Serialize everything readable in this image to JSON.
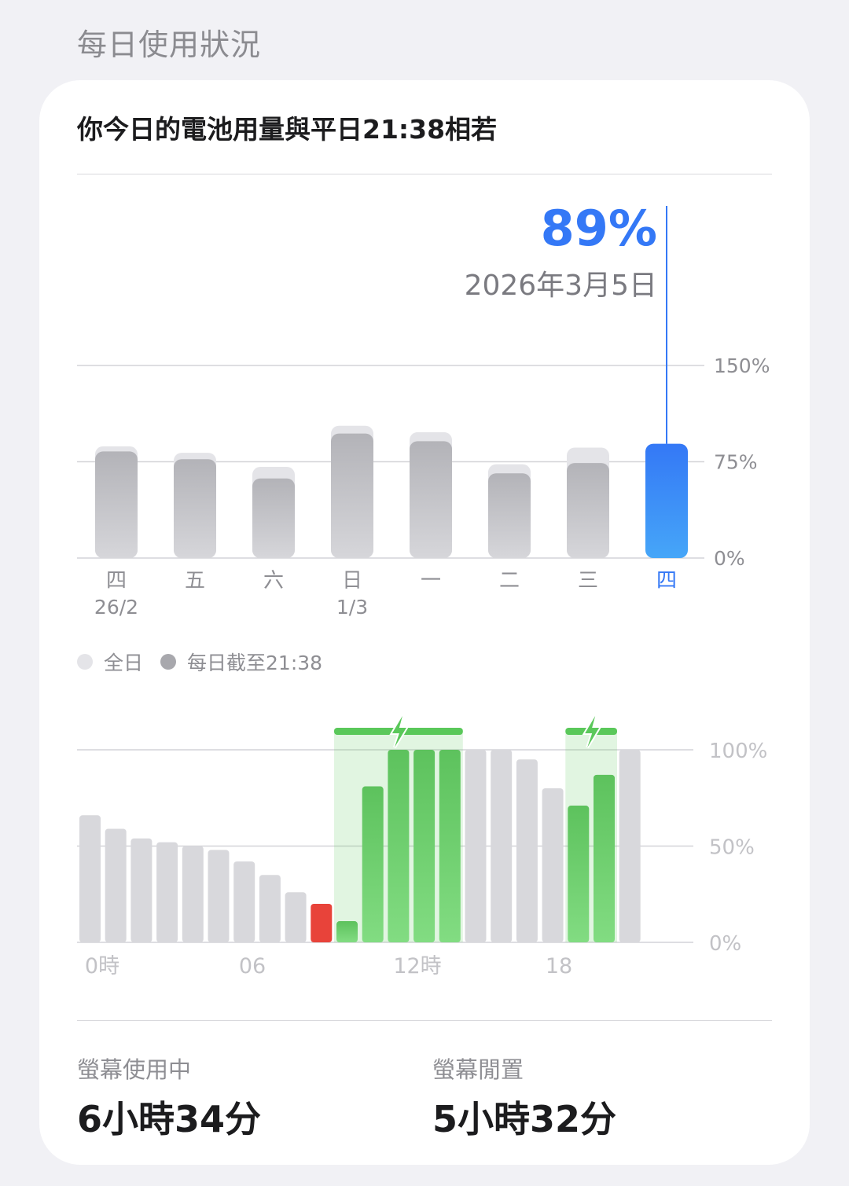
{
  "section_title": "每日使用狀況",
  "headline": "你今日的電池用量與平日21:38相若",
  "callout": {
    "percent": "89%",
    "date": "2026年3月5日"
  },
  "colors": {
    "accent_blue": "#3478f6",
    "bar_gray": "#b5b5ba",
    "bar_light": "#e4e4e8",
    "charging_green": "#5ac85a",
    "low_red": "#e8433a"
  },
  "daily_chart_data": {
    "type": "bar",
    "y_ticks": [
      "150%",
      "75%",
      "0%"
    ],
    "ylim": [
      0,
      150
    ],
    "categories": [
      "四",
      "五",
      "六",
      "日",
      "一",
      "二",
      "三",
      "四"
    ],
    "date_labels": [
      "26/2",
      "",
      "",
      "1/3",
      "",
      "",
      "",
      ""
    ],
    "series": [
      {
        "name": "全日",
        "values": [
          87,
          82,
          71,
          103,
          98,
          73,
          86,
          null
        ]
      },
      {
        "name": "每日截至21:38",
        "values": [
          83,
          77,
          62,
          97,
          91,
          66,
          74,
          89
        ]
      }
    ],
    "highlight_index": 7
  },
  "legend": [
    {
      "label": "全日",
      "icon": "light-gray-dot"
    },
    {
      "label": "每日截至21:38",
      "icon": "gray-dot"
    }
  ],
  "hourly_chart_data": {
    "type": "bar",
    "y_ticks": [
      "100%",
      "50%",
      "0%"
    ],
    "ylim": [
      0,
      100
    ],
    "x_labels": [
      "0時",
      "06",
      "12時",
      "18"
    ],
    "values": [
      66,
      59,
      54,
      52,
      50,
      48,
      42,
      35,
      26,
      20,
      11,
      81,
      100,
      100,
      100,
      100,
      100,
      95,
      80,
      71,
      87,
      100
    ],
    "bar_states": [
      "gray",
      "gray",
      "gray",
      "gray",
      "gray",
      "gray",
      "gray",
      "gray",
      "gray",
      "red",
      "green",
      "green",
      "green",
      "green",
      "green",
      "gray",
      "gray",
      "gray",
      "gray",
      "green",
      "green",
      "gray"
    ],
    "charging_periods": [
      [
        10,
        14
      ],
      [
        19,
        20
      ]
    ]
  },
  "stats": {
    "screen_on_label": "螢幕使用中",
    "screen_on_value": "6小時34分",
    "screen_off_label": "螢幕閒置",
    "screen_off_value": "5小時32分"
  }
}
